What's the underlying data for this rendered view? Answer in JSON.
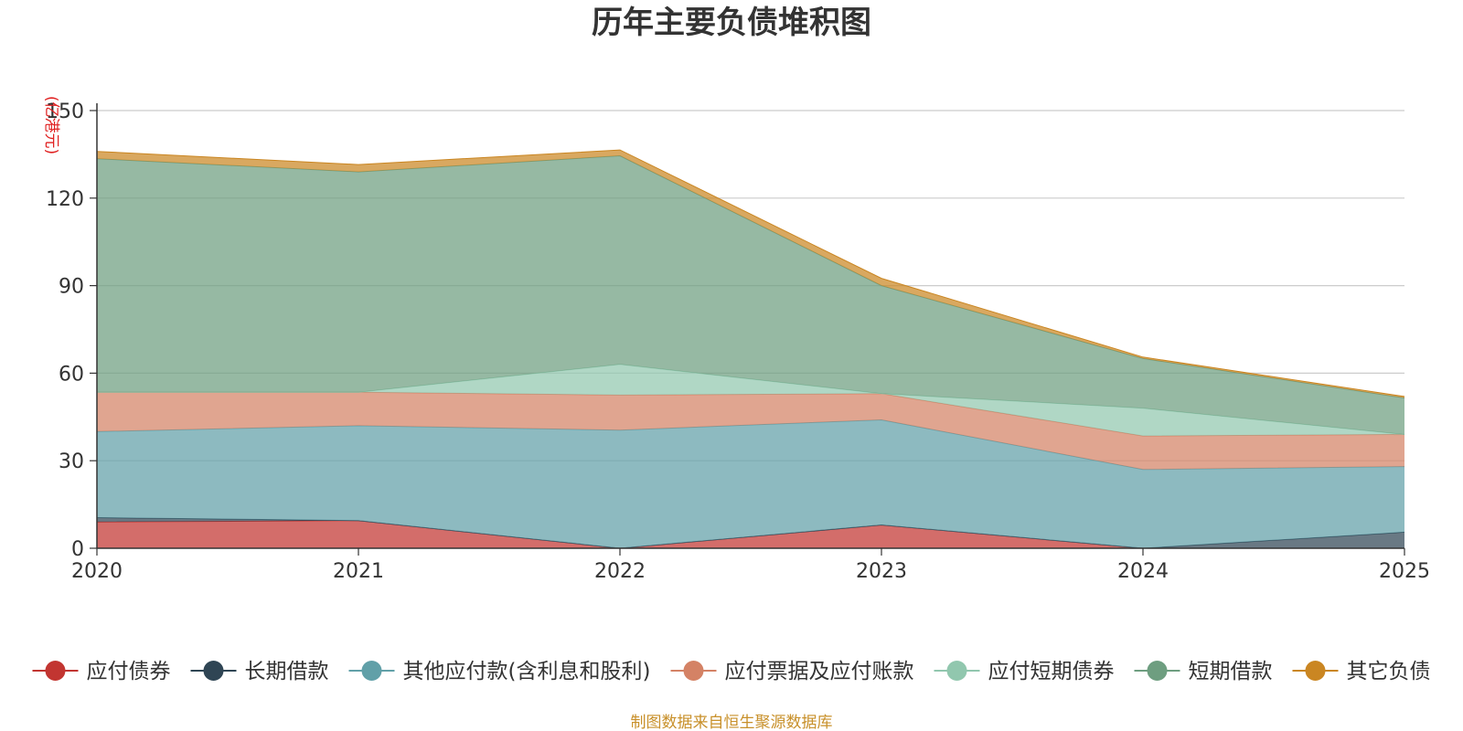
{
  "chart_data": {
    "type": "area",
    "stacked": true,
    "title": "历年主要负债堆积图",
    "unit_label": "(亿港元)",
    "x": [
      "2020",
      "2021",
      "2022",
      "2023",
      "2024",
      "2025"
    ],
    "ylim": [
      0,
      150
    ],
    "yticks": [
      0,
      30,
      60,
      90,
      120,
      150
    ],
    "grid": true,
    "legend_position": "bottom",
    "series": [
      {
        "name": "应付债券",
        "color": "#c23531",
        "values": [
          9,
          9.5,
          0,
          8,
          0,
          0
        ]
      },
      {
        "name": "长期借款",
        "color": "#2f4554",
        "values": [
          1.5,
          0,
          0,
          0,
          0,
          5.5
        ]
      },
      {
        "name": "其他应付款(含利息和股利)",
        "color": "#61a0a8",
        "values": [
          29.5,
          32.5,
          40.5,
          36,
          27,
          22.5
        ]
      },
      {
        "name": "应付票据及应付账款",
        "color": "#d48265",
        "values": [
          13.5,
          11.5,
          12,
          9,
          11.5,
          11
        ]
      },
      {
        "name": "应付短期债券",
        "color": "#91c7ae",
        "values": [
          0,
          0,
          10.5,
          0,
          9.5,
          0
        ]
      },
      {
        "name": "短期借款",
        "color": "#6e9e80",
        "values": [
          80,
          75.5,
          71.5,
          37,
          17,
          12.5
        ]
      },
      {
        "name": "其它负债",
        "color": "#ca8622",
        "values": [
          2.5,
          2.5,
          2,
          2.5,
          0.5,
          0.5
        ]
      }
    ]
  },
  "source_note": "制图数据来自恒生聚源数据库",
  "colors": {
    "axis": "#333333",
    "grid": "#cccccc",
    "unit": "#e02020",
    "source": "#c8902a"
  }
}
